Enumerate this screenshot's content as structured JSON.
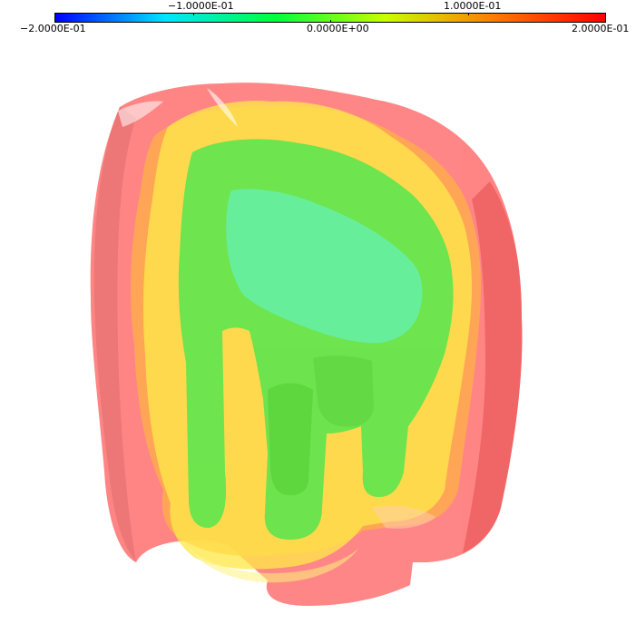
{
  "colorbar": {
    "gradient_colors": [
      "#0000ff",
      "#00e5ff",
      "#00ff3c",
      "#c8ff00",
      "#ff7a00",
      "#ff0000"
    ],
    "top_labels": [
      "−1.0000E-01",
      "1.0000E-01"
    ],
    "bottom_labels": [
      "−2.0000E-01",
      "0.0000E+00",
      "2.0000E-01"
    ]
  },
  "scene": {
    "isosurface_colors": {
      "outer_red": "#ff5a5a",
      "orange": "#ffae4a",
      "yellow": "#ffe84a",
      "green": "#4ee64e",
      "cyan_green": "#66f0a8"
    }
  }
}
